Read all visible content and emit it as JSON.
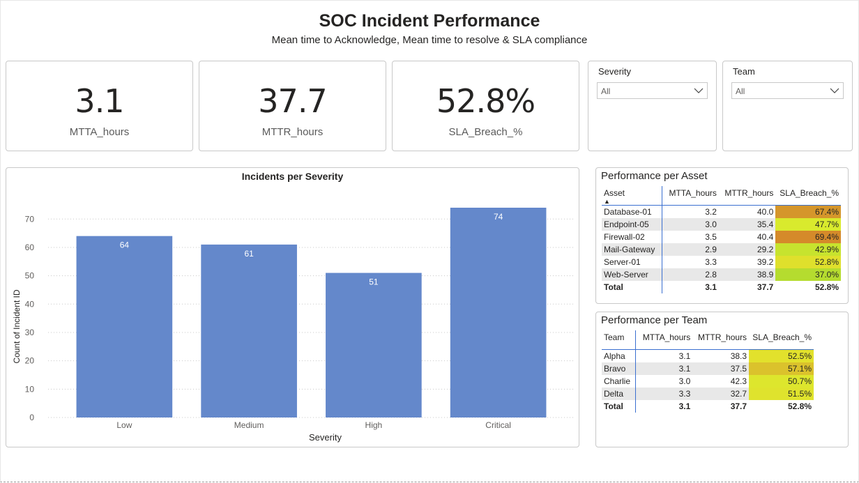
{
  "header": {
    "title": "SOC Incident Performance",
    "subtitle": "Mean time to Acknowledge, Mean time to resolve & SLA compliance"
  },
  "kpis": [
    {
      "value": "3.1",
      "label": "MTTA_hours"
    },
    {
      "value": "37.7",
      "label": "MTTR_hours"
    },
    {
      "value": "52.8%",
      "label": "SLA_Breach_%"
    }
  ],
  "slicers": [
    {
      "title": "Severity",
      "value": "All"
    },
    {
      "title": "Team",
      "value": "All"
    }
  ],
  "chart_data": {
    "type": "bar",
    "title": "Incidents per Severity",
    "categories": [
      "Low",
      "Medium",
      "High",
      "Critical"
    ],
    "values": [
      64,
      61,
      51,
      74
    ],
    "xlabel": "Severity",
    "ylabel": "Count of Incident ID",
    "ylim": [
      0,
      74
    ],
    "yticks": [
      0,
      10,
      20,
      30,
      40,
      50,
      60,
      70
    ],
    "color": "#6488cb",
    "grid": true
  },
  "asset_table": {
    "title": "Performance per Asset",
    "columns": [
      "Asset",
      "MTTA_hours",
      "MTTR_hours",
      "SLA_Breach_%"
    ],
    "sort_indicator": "▲",
    "rows": [
      {
        "name": "Database-01",
        "mtta": "3.2",
        "mttr": "40.0",
        "sla": "67.4%",
        "sla_color": "#d5962b"
      },
      {
        "name": "Endpoint-05",
        "mtta": "3.0",
        "mttr": "35.4",
        "sla": "47.7%",
        "sla_color": "#d9ea2d"
      },
      {
        "name": "Firewall-02",
        "mtta": "3.5",
        "mttr": "40.4",
        "sla": "69.4%",
        "sla_color": "#d58a2a"
      },
      {
        "name": "Mail-Gateway",
        "mtta": "2.9",
        "mttr": "29.2",
        "sla": "42.9%",
        "sla_color": "#c7e32e"
      },
      {
        "name": "Server-01",
        "mtta": "3.3",
        "mttr": "39.2",
        "sla": "52.8%",
        "sla_color": "#dfe02c"
      },
      {
        "name": "Web-Server",
        "mtta": "2.8",
        "mttr": "38.9",
        "sla": "37.0%",
        "sla_color": "#b5dc2f"
      }
    ],
    "total": {
      "name": "Total",
      "mtta": "3.1",
      "mttr": "37.7",
      "sla": "52.8%"
    }
  },
  "team_table": {
    "title": "Performance per Team",
    "columns": [
      "Team",
      "MTTA_hours",
      "MTTR_hours",
      "SLA_Breach_%"
    ],
    "rows": [
      {
        "name": "Alpha",
        "mtta": "3.1",
        "mttr": "38.3",
        "sla": "52.5%",
        "sla_color": "#e2e12c"
      },
      {
        "name": "Bravo",
        "mtta": "3.1",
        "mttr": "37.5",
        "sla": "57.1%",
        "sla_color": "#dbc22c"
      },
      {
        "name": "Charlie",
        "mtta": "3.0",
        "mttr": "42.3",
        "sla": "50.7%",
        "sla_color": "#dde62d"
      },
      {
        "name": "Delta",
        "mtta": "3.3",
        "mttr": "32.7",
        "sla": "51.5%",
        "sla_color": "#dfe32d"
      }
    ],
    "total": {
      "name": "Total",
      "mtta": "3.1",
      "mttr": "37.7",
      "sla": "52.8%"
    }
  }
}
